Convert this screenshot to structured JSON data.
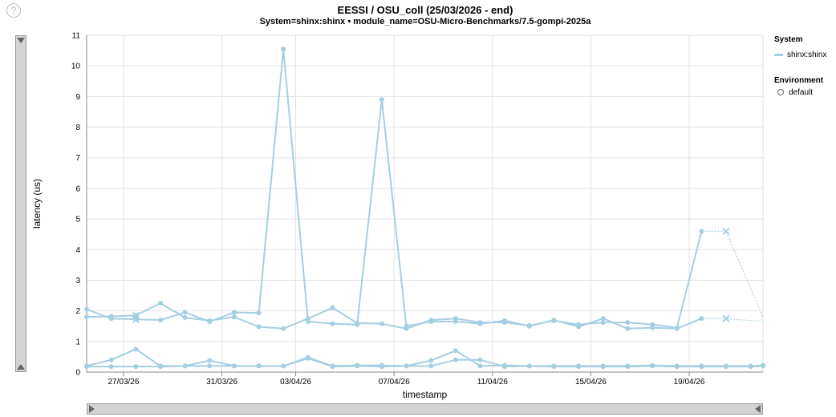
{
  "header": {
    "help_icon": "question-circle-icon",
    "title": "EESSI / OSU_coll (25/03/2026 - end)",
    "subtitle": "System=shinx:shinx • module_name=OSU-Micro-Benchmarks/7.5-gompi-2025a"
  },
  "legend": {
    "system_title": "System",
    "system_items": [
      {
        "label": "shinx:shinx",
        "color": "#a6cee3"
      }
    ],
    "environment_title": "Environment",
    "environment_items": [
      {
        "label": "default"
      }
    ]
  },
  "chart_data": {
    "type": "line",
    "title": "EESSI / OSU_coll (25/03/2026 - end)",
    "subtitle": "System=shinx:shinx • module_name=OSU-Micro-Benchmarks/7.5-gompi-2025a",
    "xlabel": "timestamp",
    "ylabel": "latency (us)",
    "xlim": [
      "2026-03-25T12:00",
      "2026-04-22T00:00"
    ],
    "ylim": [
      0,
      11
    ],
    "yticks": [
      0,
      1,
      2,
      3,
      4,
      5,
      6,
      7,
      8,
      9,
      10,
      11
    ],
    "xticks": [
      {
        "date": "2026-03-27",
        "label": "27/03/26"
      },
      {
        "date": "2026-03-31",
        "label": "31/03/26"
      },
      {
        "date": "2026-04-03",
        "label": "03/04/26"
      },
      {
        "date": "2026-04-07",
        "label": "07/04/26"
      },
      {
        "date": "2026-04-11",
        "label": "11/04/26"
      },
      {
        "date": "2026-04-15",
        "label": "15/04/26"
      },
      {
        "date": "2026-04-19",
        "label": "19/04/26"
      }
    ],
    "grid": true,
    "color": "#a6cee3",
    "x": [
      "2026-03-25T12:00",
      "2026-03-26T12:00",
      "2026-03-27T12:00",
      "2026-03-28T12:00",
      "2026-03-29T12:00",
      "2026-03-30T12:00",
      "2026-03-31T12:00",
      "2026-04-01T12:00",
      "2026-04-02T12:00",
      "2026-04-03T12:00",
      "2026-04-04T12:00",
      "2026-04-05T12:00",
      "2026-04-06T12:00",
      "2026-04-07T12:00",
      "2026-04-08T12:00",
      "2026-04-09T12:00",
      "2026-04-10T12:00",
      "2026-04-11T12:00",
      "2026-04-12T12:00",
      "2026-04-13T12:00",
      "2026-04-14T12:00",
      "2026-04-15T12:00",
      "2026-04-16T12:00",
      "2026-04-17T12:00",
      "2026-04-18T12:00",
      "2026-04-19T12:00",
      "2026-04-20T12:00",
      "2026-04-21T12:00",
      "2026-04-22T00:00"
    ],
    "series": [
      {
        "values": [
          2.05,
          1.75,
          1.72,
          1.7,
          1.95,
          1.65,
          1.95,
          1.93,
          10.55,
          1.65,
          1.58,
          1.55,
          8.9,
          1.5,
          1.65,
          1.65,
          1.58,
          1.68,
          1.5,
          1.7,
          1.48,
          1.75,
          1.42,
          1.45,
          1.42,
          1.75,
          null,
          null,
          null
        ]
      },
      {
        "values": [
          1.8,
          1.82,
          1.85,
          2.25,
          1.78,
          1.68,
          1.8,
          1.48,
          1.42,
          1.75,
          2.1,
          1.6,
          1.58,
          1.42,
          1.7,
          1.75,
          1.62,
          1.62,
          1.52,
          1.68,
          1.55,
          1.62,
          1.62,
          1.55,
          1.45,
          4.6,
          null,
          null,
          null
        ]
      },
      {
        "values": [
          0.2,
          0.4,
          0.75,
          0.2,
          0.2,
          0.38,
          0.2,
          0.2,
          0.2,
          0.48,
          0.2,
          0.22,
          0.22,
          0.2,
          0.38,
          0.7,
          0.2,
          0.22,
          0.2,
          0.2,
          0.2,
          0.2,
          0.2,
          0.22,
          0.2,
          0.2,
          0.2,
          0.2,
          0.22
        ]
      },
      {
        "values": [
          0.18,
          0.18,
          0.18,
          0.18,
          0.2,
          0.2,
          0.2,
          0.2,
          0.2,
          0.45,
          0.18,
          0.2,
          0.18,
          0.2,
          0.2,
          0.4,
          0.4,
          0.18,
          0.2,
          0.18,
          0.18,
          0.18,
          0.18,
          0.2,
          0.18,
          0.18,
          0.18,
          0.18,
          0.2
        ]
      }
    ],
    "dotted_segments": [
      {
        "x": [
          "2026-03-26T12:00",
          "2026-03-27T12:00"
        ],
        "values": [
          1.75,
          1.72
        ]
      },
      {
        "x": [
          "2026-03-26T12:00",
          "2026-03-27T12:00"
        ],
        "values": [
          1.82,
          1.85
        ]
      },
      {
        "x": [
          "2026-04-19T12:00",
          "2026-04-20T12:00",
          "2026-04-22T00:00"
        ],
        "values": [
          1.75,
          1.75,
          1.65
        ]
      },
      {
        "x": [
          "2026-04-19T12:00",
          "2026-04-20T12:00",
          "2026-04-22T00:00"
        ],
        "values": [
          4.6,
          4.6,
          1.8
        ]
      }
    ],
    "failed_markers": [
      {
        "x": "2026-03-27T12:00",
        "value": 1.72
      },
      {
        "x": "2026-03-27T12:00",
        "value": 1.85
      },
      {
        "x": "2026-04-20T12:00",
        "value": 1.75
      },
      {
        "x": "2026-04-20T12:00",
        "value": 4.6
      }
    ]
  }
}
